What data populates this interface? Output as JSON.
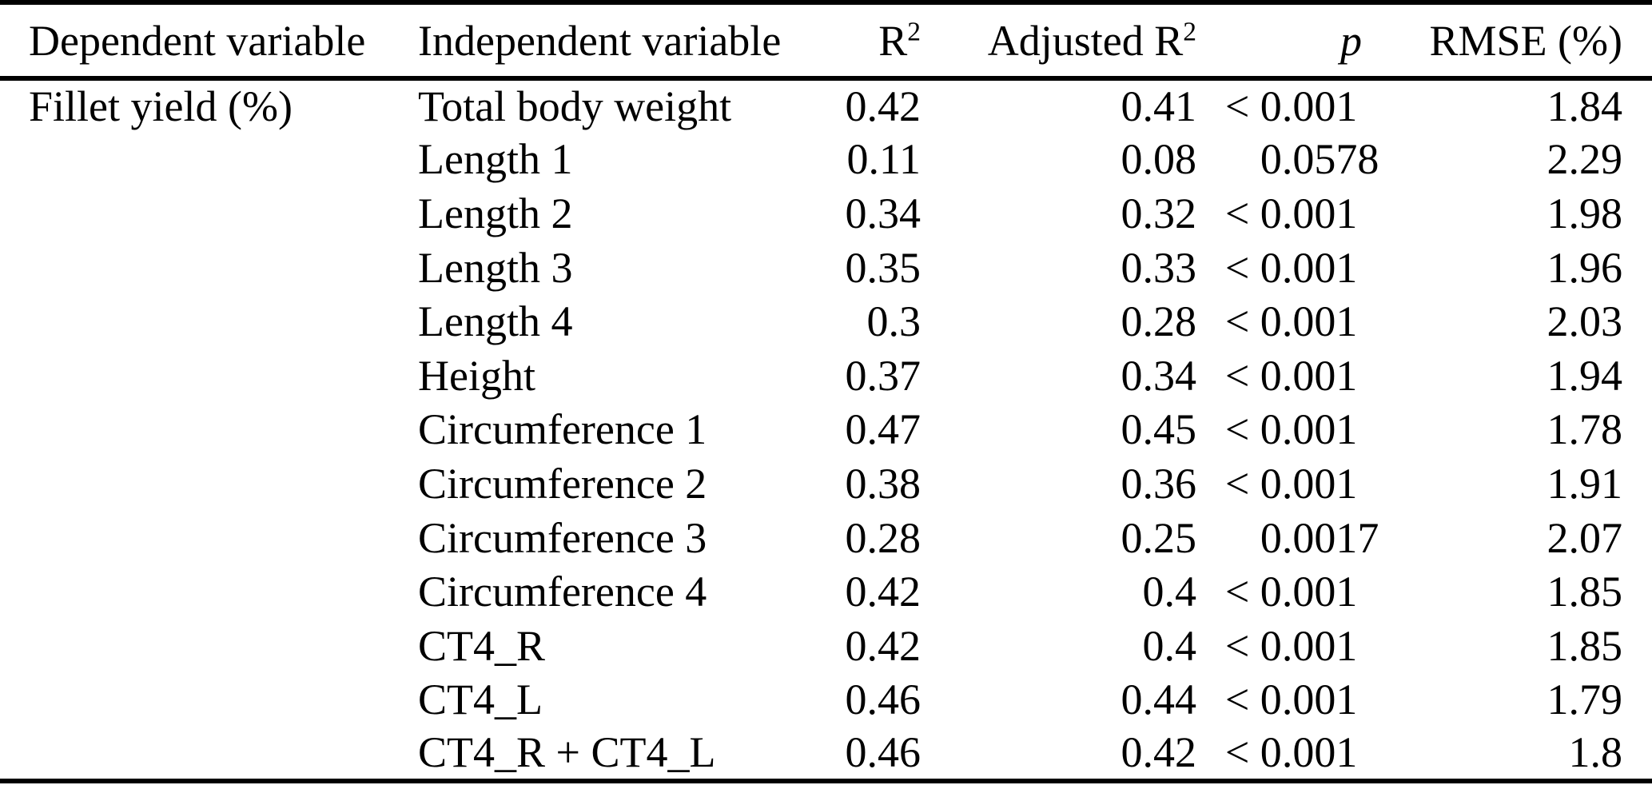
{
  "colors": {
    "text": "#000000",
    "background": "#ffffff",
    "rule": "#000000"
  },
  "table": {
    "columns": [
      {
        "label": "Dependent variable"
      },
      {
        "label": "Independent variable"
      },
      {
        "label": "R",
        "sup": "2"
      },
      {
        "label": "Adjusted R",
        "sup": "2"
      },
      {
        "label": "p"
      },
      {
        "label": "RMSE (%)"
      }
    ],
    "rows": [
      {
        "dependent_variable": "Fillet yield (%)",
        "independent_variable": "Total body weight",
        "r2": "0.42",
        "adjusted_r2": "0.41",
        "p": "< 0.001",
        "rmse": "1.84"
      },
      {
        "dependent_variable": "",
        "independent_variable": "Length 1",
        "r2": "0.11",
        "adjusted_r2": "0.08",
        "p": "0.0578",
        "rmse": "2.29"
      },
      {
        "dependent_variable": "",
        "independent_variable": "Length 2",
        "r2": "0.34",
        "adjusted_r2": "0.32",
        "p": "< 0.001",
        "rmse": "1.98"
      },
      {
        "dependent_variable": "",
        "independent_variable": "Length 3",
        "r2": "0.35",
        "adjusted_r2": "0.33",
        "p": "< 0.001",
        "rmse": "1.96"
      },
      {
        "dependent_variable": "",
        "independent_variable": "Length 4",
        "r2": "0.3",
        "adjusted_r2": "0.28",
        "p": "< 0.001",
        "rmse": "2.03"
      },
      {
        "dependent_variable": "",
        "independent_variable": "Height",
        "r2": "0.37",
        "adjusted_r2": "0.34",
        "p": "< 0.001",
        "rmse": "1.94"
      },
      {
        "dependent_variable": "",
        "independent_variable": "Circumference 1",
        "r2": "0.47",
        "adjusted_r2": "0.45",
        "p": "< 0.001",
        "rmse": "1.78"
      },
      {
        "dependent_variable": "",
        "independent_variable": "Circumference 2",
        "r2": "0.38",
        "adjusted_r2": "0.36",
        "p": "< 0.001",
        "rmse": "1.91"
      },
      {
        "dependent_variable": "",
        "independent_variable": "Circumference 3",
        "r2": "0.28",
        "adjusted_r2": "0.25",
        "p": "0.0017",
        "rmse": "2.07"
      },
      {
        "dependent_variable": "",
        "independent_variable": "Circumference 4",
        "r2": "0.42",
        "adjusted_r2": "0.4",
        "p": "< 0.001",
        "rmse": "1.85"
      },
      {
        "dependent_variable": "",
        "independent_variable": "CT4_R",
        "r2": "0.42",
        "adjusted_r2": "0.4",
        "p": "< 0.001",
        "rmse": "1.85"
      },
      {
        "dependent_variable": "",
        "independent_variable": "CT4_L",
        "r2": "0.46",
        "adjusted_r2": "0.44",
        "p": "< 0.001",
        "rmse": "1.79"
      },
      {
        "dependent_variable": "",
        "independent_variable": "CT4_R + CT4_L",
        "r2": "0.46",
        "adjusted_r2": "0.42",
        "p": "< 0.001",
        "rmse": "1.8"
      }
    ]
  }
}
